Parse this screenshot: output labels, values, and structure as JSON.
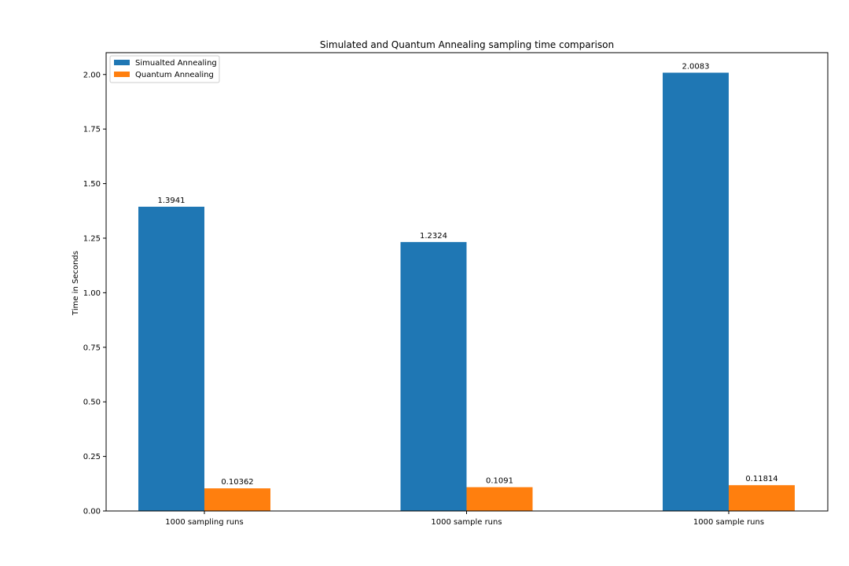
{
  "chart_data": {
    "type": "bar",
    "title": "Simulated and Quantum Annealing sampling time comparison",
    "xlabel": "",
    "ylabel": "Time in Seconds",
    "categories": [
      "1000 sampling runs",
      "1000 sample runs",
      "1000 sample runs"
    ],
    "series": [
      {
        "name": "Simualted Annealing",
        "color": "#1f77b4",
        "values": [
          1.3941,
          1.2324,
          2.0083
        ],
        "labels": [
          "1.3941",
          "1.2324",
          "2.0083"
        ]
      },
      {
        "name": "Quantum Annealing",
        "color": "#ff7f0e",
        "values": [
          0.10362,
          0.1091,
          0.11814
        ],
        "labels": [
          "0.10362",
          "0.1091",
          "0.11814"
        ]
      }
    ],
    "ylim": [
      0,
      2.1
    ],
    "yticks": [
      0.0,
      0.25,
      0.5,
      0.75,
      1.0,
      1.25,
      1.5,
      1.75,
      2.0
    ],
    "ytick_labels": [
      "0.00",
      "0.25",
      "0.50",
      "0.75",
      "1.00",
      "1.25",
      "1.50",
      "1.75",
      "2.00"
    ],
    "grid": false,
    "legend_position": "upper-left"
  }
}
